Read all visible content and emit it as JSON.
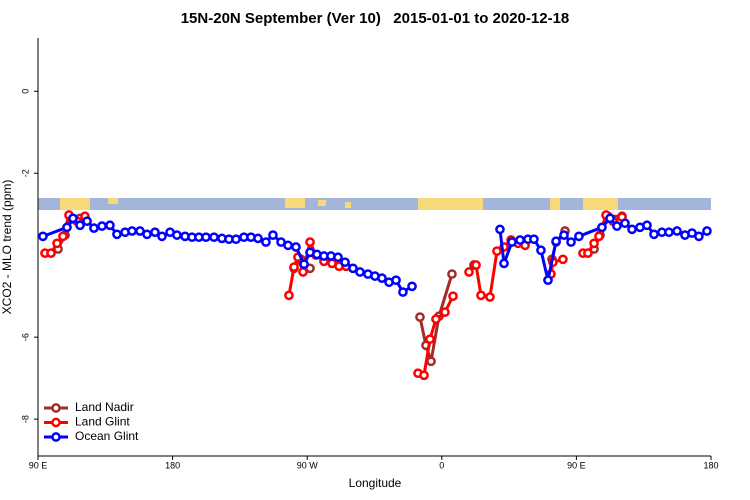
{
  "chart_data": {
    "type": "line",
    "title": "15N-20N September (Ver 10)   2015-01-01 to 2020-12-18",
    "x_label": "Longitude",
    "y_label": "XCO2 - MLO trend (ppm)",
    "xlim": [
      90,
      540
    ],
    "xticks": [
      {
        "value": 90,
        "label": "90 E"
      },
      180,
      {
        "value": 270,
        "label": "90 W"
      },
      {
        "value": 360,
        "label": "0"
      },
      {
        "value": 450,
        "label": "90 E"
      },
      {
        "value": 540,
        "label": "180"
      }
    ],
    "ylim": [
      -8.9,
      1.3
    ],
    "yticks": [
      0,
      -2,
      -6,
      -8
    ],
    "legend": "bottom-left",
    "series": [
      {
        "name": "Land Nadir",
        "color": "#a52a2a",
        "x": [
          103.4,
          108.1,
          112.7,
          118.1,
          null,
          261.2,
          265.9,
          271.9,
          null,
          345.4,
          349.4,
          352.8,
          358.1,
          366.8,
          null,
          381.5,
          null,
          433.7,
          436.4,
          442.4,
          null,
          461.8,
          465.8,
          471.2,
          480.5
        ],
        "values": [
          -3.85,
          -3.51,
          -3.12,
          -3.1,
          null,
          -4.32,
          -4.1,
          -4.32,
          null,
          -5.51,
          -6.2,
          -6.59,
          -5.49,
          -4.46,
          null,
          -4.24,
          null,
          -4.1,
          -3.68,
          -3.41,
          null,
          -3.85,
          -3.51,
          -3.05,
          -3.05
        ]
      },
      {
        "name": "Land Glint",
        "color": "#ff0000",
        "x": [
          94.7,
          98.7,
          102.7,
          106.7,
          110.7,
          116.1,
          121.4,
          null,
          257.8,
          261.2,
          263.8,
          267.2,
          271.9,
          275.9,
          281.2,
          286.6,
          291.3,
          296,
          null,
          344.1,
          348.1,
          352.1,
          356.1,
          362.1,
          367.5,
          null,
          378.2,
          382.9,
          386.2,
          392.2,
          396.9,
          401.6,
          406.3,
          411,
          415.7,
          null,
          433,
          434.3,
          441,
          null,
          454.4,
          457.7,
          461.8,
          465.1,
          469.8,
          474.5,
          480.5
        ],
        "values": [
          -3.95,
          -3.95,
          -3.71,
          -3.54,
          -3.02,
          -3.17,
          -3.05,
          null,
          -4.98,
          -4.29,
          -4.05,
          -4.41,
          -3.68,
          -4.0,
          -4.15,
          -4.2,
          -4.27,
          -4.27,
          null,
          -6.88,
          -6.93,
          -6.05,
          -5.56,
          -5.39,
          -5.0,
          null,
          -4.41,
          -4.24,
          -4.98,
          -5.02,
          -3.9,
          -3.8,
          -3.63,
          -3.71,
          -3.76,
          null,
          -4.46,
          -4.17,
          -4.1,
          null,
          -3.95,
          -3.95,
          -3.71,
          -3.54,
          -3.02,
          -3.17,
          -3.07
        ]
      },
      {
        "name": "Ocean Glint",
        "color": "#0000ff",
        "x": [
          93.3,
          109.4,
          113.4,
          118.1,
          122.8,
          127.4,
          132.8,
          138.1,
          142.8,
          148.2,
          152.9,
          158.2,
          162.9,
          168.2,
          172.9,
          178.3,
          182.9,
          188.3,
          193,
          197.6,
          202.3,
          207.7,
          213,
          217.7,
          222.4,
          227.7,
          232.4,
          237.1,
          242.4,
          247.1,
          252.5,
          257.2,
          262.5,
          267.9,
          271.9,
          276.5,
          281.2,
          285.9,
          290.6,
          295.3,
          300.6,
          305.3,
          310.6,
          315.3,
          320,
          324.7,
          329.4,
          334,
          340.1,
          null,
          398.9,
          401.6,
          406.9,
          412.3,
          417.6,
          421.6,
          426.3,
          431,
          436.4,
          441.7,
          446.4,
          451.7,
          467.1,
          472.5,
          477.1,
          482.5,
          487.2,
          492.5,
          497.2,
          501.9,
          507.2,
          511.9,
          517.3,
          522.6,
          527.3,
          531.9,
          537.3
        ],
        "values": [
          -3.54,
          -3.32,
          -3.1,
          -3.27,
          -3.17,
          -3.34,
          -3.29,
          -3.27,
          -3.49,
          -3.44,
          -3.41,
          -3.41,
          -3.49,
          -3.44,
          -3.54,
          -3.44,
          -3.51,
          -3.54,
          -3.56,
          -3.56,
          -3.56,
          -3.56,
          -3.59,
          -3.61,
          -3.61,
          -3.56,
          -3.56,
          -3.59,
          -3.68,
          -3.51,
          -3.68,
          -3.76,
          -3.8,
          -4.22,
          -3.93,
          -3.98,
          -4.02,
          -4.02,
          -4.05,
          -4.17,
          -4.32,
          -4.41,
          -4.46,
          -4.51,
          -4.56,
          -4.66,
          -4.61,
          -4.9,
          -4.76,
          null,
          -3.37,
          -4.2,
          -3.68,
          -3.63,
          -3.61,
          -3.61,
          -3.88,
          -4.61,
          -3.66,
          -3.51,
          -3.68,
          -3.54,
          -3.32,
          -3.1,
          -3.29,
          -3.22,
          -3.37,
          -3.32,
          -3.27,
          -3.49,
          -3.44,
          -3.44,
          -3.41,
          -3.51,
          -3.46,
          -3.54,
          -3.41
        ]
      }
    ]
  }
}
